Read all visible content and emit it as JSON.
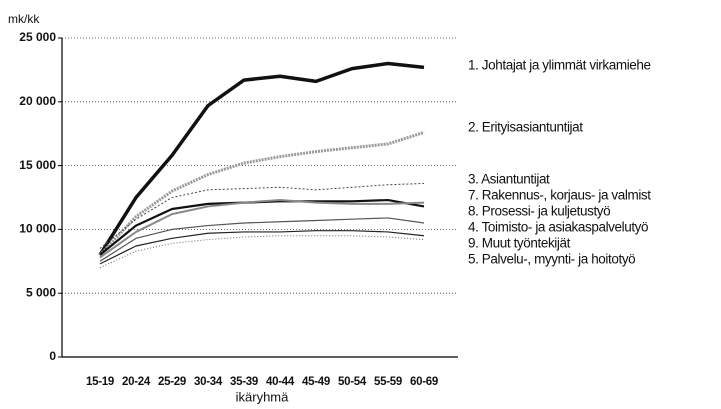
{
  "chart_data": {
    "type": "line",
    "ylabel": "mk/kk",
    "xlabel": "ikäryhmä",
    "categories": [
      "15-19",
      "20-24",
      "25-29",
      "30-34",
      "35-39",
      "40-44",
      "45-49",
      "50-54",
      "55-59",
      "60-69"
    ],
    "ylim": [
      0,
      25000
    ],
    "yticks": [
      0,
      {
        "value": 5000,
        "label": "5 000"
      },
      {
        "value": 10000,
        "label": "10 000"
      },
      {
        "value": 15000,
        "label": "15 000"
      },
      {
        "value": 20000,
        "label": "20 000"
      },
      {
        "value": 25000,
        "label": "25 000"
      }
    ],
    "grid": true,
    "series": [
      {
        "name": "1. Johtajat ja ylimmät virkamiehe",
        "color": "#111111",
        "width": 3.5,
        "dash": "none",
        "values": [
          8000,
          12500,
          15800,
          19700,
          21700,
          22000,
          21600,
          22600,
          23000,
          22700
        ]
      },
      {
        "name": "2. Erityisasiantuntijat",
        "color": "#999999",
        "width": 3,
        "dash": "2 1",
        "values": [
          8000,
          11000,
          13000,
          14300,
          15200,
          15700,
          16100,
          16400,
          16700,
          17600
        ]
      },
      {
        "name": "3. Asiantuntijat",
        "color": "#444444",
        "width": 1,
        "dash": "2 2",
        "values": [
          8500,
          10800,
          12500,
          13100,
          13200,
          13300,
          13100,
          13300,
          13500,
          13600
        ]
      },
      {
        "name": "7. Rakennus-, korjaus- ja valmist",
        "color": "#111111",
        "width": 2.2,
        "dash": "none",
        "values": [
          8000,
          10300,
          11600,
          12000,
          12100,
          12200,
          12200,
          12200,
          12300,
          11800
        ]
      },
      {
        "name": "8. Prosessi- ja kuljetustyö",
        "color": "#888888",
        "width": 2,
        "dash": "none",
        "values": [
          7800,
          9800,
          11200,
          11800,
          12100,
          12300,
          12100,
          12000,
          12000,
          12100
        ]
      },
      {
        "name": "4. Toimisto- ja asiakaspalvelutyö",
        "color": "#555555",
        "width": 1.2,
        "dash": "none",
        "values": [
          7500,
          9300,
          10000,
          10300,
          10500,
          10600,
          10700,
          10800,
          10900,
          10500
        ]
      },
      {
        "name": "9. Muut työntekijät",
        "color": "#222222",
        "width": 1.2,
        "dash": "none",
        "values": [
          7300,
          8700,
          9300,
          9700,
          9800,
          9800,
          9900,
          9900,
          9800,
          9500
        ]
      },
      {
        "name": "5. Palvelu-, myynti- ja hoitotyö",
        "color": "#666666",
        "width": 1,
        "dash": "1 2",
        "values": [
          7000,
          8300,
          8900,
          9200,
          9400,
          9500,
          9500,
          9500,
          9400,
          9200
        ]
      }
    ]
  }
}
